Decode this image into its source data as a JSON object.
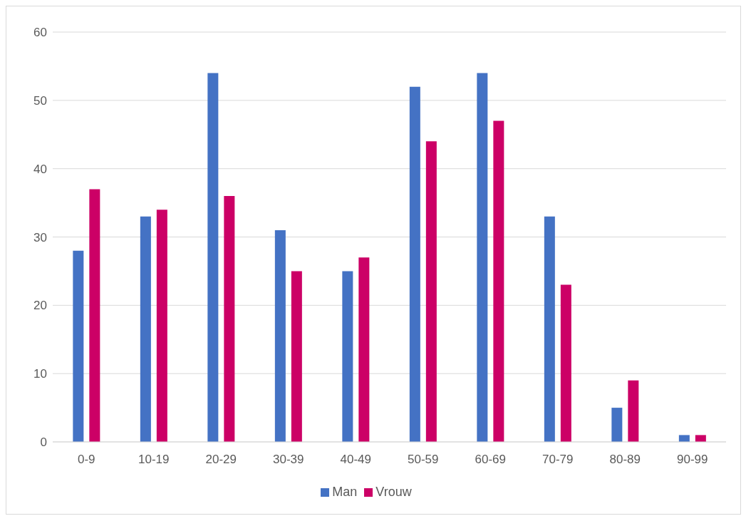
{
  "chart_data": {
    "type": "bar",
    "categories": [
      "0-9",
      "10-19",
      "20-29",
      "30-39",
      "40-49",
      "50-59",
      "60-69",
      "70-79",
      "80-89",
      "90-99"
    ],
    "series": [
      {
        "name": "Man",
        "color": "#4472c4",
        "values": [
          28,
          33,
          54,
          31,
          25,
          52,
          54,
          33,
          5,
          1
        ]
      },
      {
        "name": "Vrouw",
        "color": "#cc0066",
        "values": [
          37,
          34,
          36,
          25,
          27,
          44,
          47,
          23,
          9,
          1
        ]
      }
    ],
    "ylim": [
      0,
      60
    ],
    "yticks": [
      0,
      10,
      20,
      30,
      40,
      50,
      60
    ],
    "grid": "y",
    "legend": "bottom"
  }
}
